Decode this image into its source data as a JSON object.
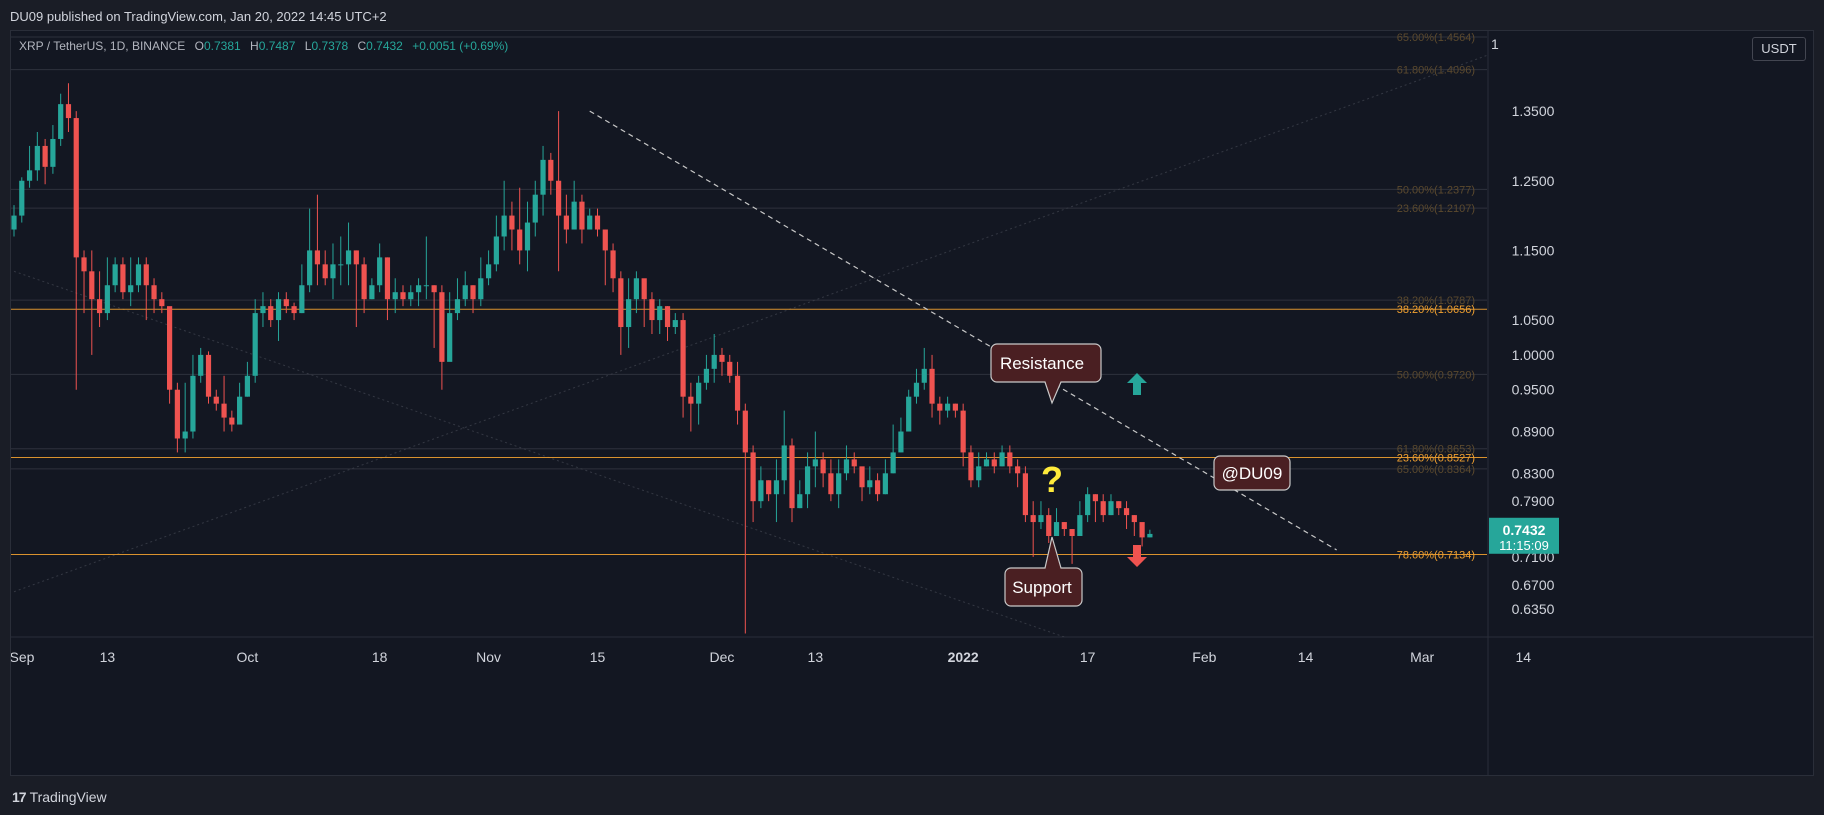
{
  "publisher_line": "DU09 published on TradingView.com, Jan 20, 2022 14:45 UTC+2",
  "symbol": {
    "name": "XRP / TetherUS, 1D, BINANCE",
    "open_label": "O",
    "open": "0.7381",
    "high_label": "H",
    "high": "0.7487",
    "low_label": "L",
    "low": "0.7378",
    "close_label": "C",
    "close": "0.7432",
    "change": "+0.0051 (+0.69%)"
  },
  "unit_label": "USDT",
  "scale_toggle": "1",
  "price_badge": {
    "price": "0.7432",
    "countdown": "11:15:09",
    "color": "#26a69a"
  },
  "footer": {
    "brand_mark": "17",
    "brand": "TradingView"
  },
  "colors": {
    "up": "#26a69a",
    "down": "#ef5350",
    "fib": "#f0a030",
    "bg": "#131722",
    "callout": "#4a1f22"
  },
  "chart_data": {
    "type": "candlestick",
    "title": "XRP / TetherUS, 1D, BINANCE",
    "y_range": [
      0.595,
      1.465
    ],
    "y_ticks": [
      "1.3500",
      "1.2500",
      "1.1500",
      "1.0500",
      "1.0000",
      "0.9500",
      "0.8900",
      "0.8300",
      "0.7900",
      "0.7100",
      "0.6700",
      "0.6350"
    ],
    "x_ticks": [
      {
        "label": "Sep",
        "day": 0
      },
      {
        "label": "13",
        "day": 12
      },
      {
        "label": "Oct",
        "day": 30
      },
      {
        "label": "18",
        "day": 47
      },
      {
        "label": "Nov",
        "day": 61
      },
      {
        "label": "15",
        "day": 75
      },
      {
        "label": "Dec",
        "day": 91
      },
      {
        "label": "13",
        "day": 103
      },
      {
        "label": "2022",
        "day": 122
      },
      {
        "label": "17",
        "day": 138
      },
      {
        "label": "Feb",
        "day": 153
      },
      {
        "label": "14",
        "day": 166
      },
      {
        "label": "Mar",
        "day": 181
      },
      {
        "label": "14",
        "day": 194
      }
    ],
    "candles": [
      {
        "c": 1.2,
        "l": 1.17,
        "h": 1.215
      },
      {
        "c": 1.25,
        "l": 1.19,
        "h": 1.255
      },
      {
        "c": 1.265,
        "l": 1.24,
        "h": 1.3
      },
      {
        "c": 1.3,
        "l": 1.25,
        "h": 1.32
      },
      {
        "c": 1.27,
        "l": 1.245,
        "h": 1.31
      },
      {
        "c": 1.31,
        "l": 1.26,
        "h": 1.33
      },
      {
        "c": 1.36,
        "l": 1.3,
        "h": 1.375
      },
      {
        "c": 1.34,
        "l": 1.32,
        "h": 1.39
      },
      {
        "c": 1.14,
        "l": 0.95,
        "h": 1.35
      },
      {
        "c": 1.12,
        "l": 1.06,
        "h": 1.15
      },
      {
        "c": 1.08,
        "l": 1.0,
        "h": 1.15
      },
      {
        "c": 1.06,
        "l": 1.04,
        "h": 1.12
      },
      {
        "c": 1.1,
        "l": 1.05,
        "h": 1.14
      },
      {
        "c": 1.13,
        "l": 1.09,
        "h": 1.14
      },
      {
        "c": 1.09,
        "l": 1.08,
        "h": 1.14
      },
      {
        "c": 1.1,
        "l": 1.07,
        "h": 1.14
      },
      {
        "c": 1.13,
        "l": 1.09,
        "h": 1.14
      },
      {
        "c": 1.1,
        "l": 1.05,
        "h": 1.14
      },
      {
        "c": 1.08,
        "l": 1.06,
        "h": 1.11
      },
      {
        "c": 1.07,
        "l": 1.06,
        "h": 1.09
      },
      {
        "c": 0.95,
        "l": 0.93,
        "h": 1.06
      },
      {
        "c": 0.88,
        "l": 0.86,
        "h": 0.96
      },
      {
        "c": 0.89,
        "l": 0.86,
        "h": 0.96
      },
      {
        "c": 0.97,
        "l": 0.88,
        "h": 1.0
      },
      {
        "c": 1.0,
        "l": 0.96,
        "h": 1.01
      },
      {
        "c": 0.94,
        "l": 0.93,
        "h": 1.005
      },
      {
        "c": 0.93,
        "l": 0.92,
        "h": 0.95
      },
      {
        "c": 0.91,
        "l": 0.89,
        "h": 0.97
      },
      {
        "c": 0.9,
        "l": 0.89,
        "h": 0.92
      },
      {
        "c": 0.94,
        "l": 0.92,
        "h": 0.96
      },
      {
        "c": 0.97,
        "l": 0.94,
        "h": 0.99
      },
      {
        "c": 1.06,
        "l": 0.96,
        "h": 1.08
      },
      {
        "c": 1.07,
        "l": 1.04,
        "h": 1.09
      },
      {
        "c": 1.05,
        "l": 1.04,
        "h": 1.08
      },
      {
        "c": 1.08,
        "l": 1.02,
        "h": 1.09
      },
      {
        "c": 1.07,
        "l": 1.06,
        "h": 1.09
      },
      {
        "c": 1.06,
        "l": 1.05,
        "h": 1.075
      },
      {
        "c": 1.1,
        "l": 1.06,
        "h": 1.13
      },
      {
        "c": 1.15,
        "l": 1.09,
        "h": 1.21
      },
      {
        "c": 1.13,
        "l": 1.1,
        "h": 1.23
      },
      {
        "c": 1.11,
        "l": 1.1,
        "h": 1.15
      },
      {
        "c": 1.13,
        "l": 1.08,
        "h": 1.16
      },
      {
        "c": 1.13,
        "l": 1.1,
        "h": 1.17
      },
      {
        "c": 1.15,
        "l": 1.1,
        "h": 1.19
      },
      {
        "c": 1.13,
        "l": 1.04,
        "h": 1.15
      },
      {
        "c": 1.08,
        "l": 1.06,
        "h": 1.14
      },
      {
        "c": 1.1,
        "l": 1.08,
        "h": 1.11
      },
      {
        "c": 1.14,
        "l": 1.09,
        "h": 1.16
      },
      {
        "c": 1.08,
        "l": 1.05,
        "h": 1.14
      },
      {
        "c": 1.09,
        "l": 1.06,
        "h": 1.11
      },
      {
        "c": 1.08,
        "l": 1.07,
        "h": 1.1
      },
      {
        "c": 1.09,
        "l": 1.07,
        "h": 1.1
      },
      {
        "c": 1.1,
        "l": 1.07,
        "h": 1.11
      },
      {
        "c": 1.1,
        "l": 1.08,
        "h": 1.17
      },
      {
        "c": 1.09,
        "l": 1.01,
        "h": 1.1
      },
      {
        "c": 0.99,
        "l": 0.95,
        "h": 1.1
      },
      {
        "c": 1.06,
        "l": 1.0,
        "h": 1.09
      },
      {
        "c": 1.08,
        "l": 1.05,
        "h": 1.11
      },
      {
        "c": 1.1,
        "l": 1.07,
        "h": 1.12
      },
      {
        "c": 1.08,
        "l": 1.06,
        "h": 1.1
      },
      {
        "c": 1.11,
        "l": 1.07,
        "h": 1.14
      },
      {
        "c": 1.13,
        "l": 1.1,
        "h": 1.15
      },
      {
        "c": 1.17,
        "l": 1.12,
        "h": 1.2
      },
      {
        "c": 1.2,
        "l": 1.15,
        "h": 1.25
      },
      {
        "c": 1.18,
        "l": 1.15,
        "h": 1.22
      },
      {
        "c": 1.15,
        "l": 1.13,
        "h": 1.24
      },
      {
        "c": 1.19,
        "l": 1.12,
        "h": 1.22
      },
      {
        "c": 1.23,
        "l": 1.17,
        "h": 1.25
      },
      {
        "c": 1.28,
        "l": 1.2,
        "h": 1.3
      },
      {
        "c": 1.25,
        "l": 1.23,
        "h": 1.29
      },
      {
        "c": 1.2,
        "l": 1.12,
        "h": 1.35
      },
      {
        "c": 1.18,
        "l": 1.16,
        "h": 1.23
      },
      {
        "c": 1.22,
        "l": 1.18,
        "h": 1.25
      },
      {
        "c": 1.18,
        "l": 1.16,
        "h": 1.23
      },
      {
        "c": 1.2,
        "l": 1.18,
        "h": 1.21
      },
      {
        "c": 1.18,
        "l": 1.17,
        "h": 1.21
      },
      {
        "c": 1.15,
        "l": 1.1,
        "h": 1.18
      },
      {
        "c": 1.11,
        "l": 1.09,
        "h": 1.16
      },
      {
        "c": 1.04,
        "l": 1.0,
        "h": 1.12
      },
      {
        "c": 1.08,
        "l": 1.01,
        "h": 1.11
      },
      {
        "c": 1.11,
        "l": 1.06,
        "h": 1.12
      },
      {
        "c": 1.08,
        "l": 1.04,
        "h": 1.1
      },
      {
        "c": 1.05,
        "l": 1.03,
        "h": 1.09
      },
      {
        "c": 1.07,
        "l": 1.03,
        "h": 1.08
      },
      {
        "c": 1.04,
        "l": 1.02,
        "h": 1.07
      },
      {
        "c": 1.05,
        "l": 1.03,
        "h": 1.06
      },
      {
        "c": 0.94,
        "l": 0.91,
        "h": 1.06
      },
      {
        "c": 0.93,
        "l": 0.89,
        "h": 0.96
      },
      {
        "c": 0.96,
        "l": 0.9,
        "h": 0.97
      },
      {
        "c": 0.98,
        "l": 0.95,
        "h": 1.0
      },
      {
        "c": 1.0,
        "l": 0.96,
        "h": 1.03
      },
      {
        "c": 0.99,
        "l": 0.97,
        "h": 1.01
      },
      {
        "c": 0.97,
        "l": 0.96,
        "h": 1.0
      },
      {
        "c": 0.92,
        "l": 0.9,
        "h": 0.99
      },
      {
        "c": 0.86,
        "l": 0.6,
        "h": 0.93
      },
      {
        "c": 0.79,
        "l": 0.76,
        "h": 0.87
      },
      {
        "c": 0.82,
        "l": 0.78,
        "h": 0.84
      },
      {
        "c": 0.8,
        "l": 0.79,
        "h": 0.82
      },
      {
        "c": 0.82,
        "l": 0.76,
        "h": 0.85
      },
      {
        "c": 0.87,
        "l": 0.8,
        "h": 0.92
      },
      {
        "c": 0.78,
        "l": 0.76,
        "h": 0.88
      },
      {
        "c": 0.8,
        "l": 0.78,
        "h": 0.82
      },
      {
        "c": 0.84,
        "l": 0.78,
        "h": 0.86
      },
      {
        "c": 0.85,
        "l": 0.81,
        "h": 0.89
      },
      {
        "c": 0.83,
        "l": 0.81,
        "h": 0.86
      },
      {
        "c": 0.8,
        "l": 0.79,
        "h": 0.85
      },
      {
        "c": 0.83,
        "l": 0.78,
        "h": 0.85
      },
      {
        "c": 0.85,
        "l": 0.82,
        "h": 0.87
      },
      {
        "c": 0.84,
        "l": 0.83,
        "h": 0.86
      },
      {
        "c": 0.81,
        "l": 0.79,
        "h": 0.83
      },
      {
        "c": 0.82,
        "l": 0.8,
        "h": 0.84
      },
      {
        "c": 0.8,
        "l": 0.79,
        "h": 0.83
      },
      {
        "c": 0.83,
        "l": 0.8,
        "h": 0.85
      },
      {
        "c": 0.86,
        "l": 0.83,
        "h": 0.9
      },
      {
        "c": 0.89,
        "l": 0.86,
        "h": 0.91
      },
      {
        "c": 0.94,
        "l": 0.89,
        "h": 0.95
      },
      {
        "c": 0.96,
        "l": 0.93,
        "h": 0.98
      },
      {
        "c": 0.98,
        "l": 0.95,
        "h": 1.01
      },
      {
        "c": 0.93,
        "l": 0.91,
        "h": 1.0
      },
      {
        "c": 0.92,
        "l": 0.9,
        "h": 0.94
      },
      {
        "c": 0.93,
        "l": 0.91,
        "h": 0.94
      },
      {
        "c": 0.92,
        "l": 0.91,
        "h": 0.93
      },
      {
        "c": 0.86,
        "l": 0.84,
        "h": 0.93
      },
      {
        "c": 0.82,
        "l": 0.81,
        "h": 0.87
      },
      {
        "c": 0.84,
        "l": 0.81,
        "h": 0.86
      },
      {
        "c": 0.85,
        "l": 0.84,
        "h": 0.86
      },
      {
        "c": 0.84,
        "l": 0.83,
        "h": 0.86
      },
      {
        "c": 0.86,
        "l": 0.84,
        "h": 0.87
      },
      {
        "c": 0.84,
        "l": 0.83,
        "h": 0.87
      },
      {
        "c": 0.83,
        "l": 0.81,
        "h": 0.85
      },
      {
        "c": 0.77,
        "l": 0.76,
        "h": 0.84
      },
      {
        "c": 0.76,
        "l": 0.71,
        "h": 0.79
      },
      {
        "c": 0.77,
        "l": 0.75,
        "h": 0.79
      },
      {
        "c": 0.74,
        "l": 0.73,
        "h": 0.78
      },
      {
        "c": 0.76,
        "l": 0.74,
        "h": 0.78
      },
      {
        "c": 0.75,
        "l": 0.74,
        "h": 0.76
      },
      {
        "c": 0.74,
        "l": 0.7,
        "h": 0.75
      },
      {
        "c": 0.77,
        "l": 0.74,
        "h": 0.79
      },
      {
        "c": 0.8,
        "l": 0.76,
        "h": 0.81
      },
      {
        "c": 0.79,
        "l": 0.76,
        "h": 0.8
      },
      {
        "c": 0.77,
        "l": 0.76,
        "h": 0.8
      },
      {
        "c": 0.79,
        "l": 0.77,
        "h": 0.8
      },
      {
        "c": 0.78,
        "l": 0.77,
        "h": 0.79
      },
      {
        "c": 0.77,
        "l": 0.75,
        "h": 0.79
      },
      {
        "c": 0.76,
        "l": 0.74,
        "h": 0.77
      },
      {
        "c": 0.738,
        "l": 0.725,
        "h": 0.755
      },
      {
        "c": 0.743,
        "l": 0.738,
        "h": 0.749
      }
    ],
    "fib_levels": [
      {
        "label": "65.00%(1.4564)",
        "value": 1.4564,
        "style": "faint"
      },
      {
        "label": "61.80%(1.4096)",
        "value": 1.4096,
        "style": "faint"
      },
      {
        "label": "50.00%(1.2377)",
        "value": 1.2377,
        "style": "faint"
      },
      {
        "label": "23.60%(1.2107)",
        "value": 1.2107,
        "style": "faint"
      },
      {
        "label": "38.20%(1.0787)",
        "value": 1.0787,
        "style": "faint"
      },
      {
        "label": "38.20%(1.0656)",
        "value": 1.0656,
        "style": "bold"
      },
      {
        "label": "50.00%(0.9720)",
        "value": 0.972,
        "style": "faint"
      },
      {
        "label": "61.80%(0.8653)",
        "value": 0.8653,
        "style": "faint"
      },
      {
        "label": "23.60%(0.8527)",
        "value": 0.8527,
        "style": "bold"
      },
      {
        "label": "65.00%(0.8364)",
        "value": 0.8364,
        "style": "faint"
      },
      {
        "label": "78.60%(0.7134)",
        "value": 0.7134,
        "style": "bold"
      }
    ],
    "trendline": {
      "from": {
        "day": 74,
        "price": 1.35
      },
      "to": {
        "day": 170,
        "price": 0.72
      }
    },
    "annotations": {
      "resistance_label": "Resistance",
      "support_label": "Support",
      "question_mark": "?",
      "watermark": "@DU09",
      "arrow_up_color": "#26a69a",
      "arrow_down_color": "#ef5350"
    }
  }
}
